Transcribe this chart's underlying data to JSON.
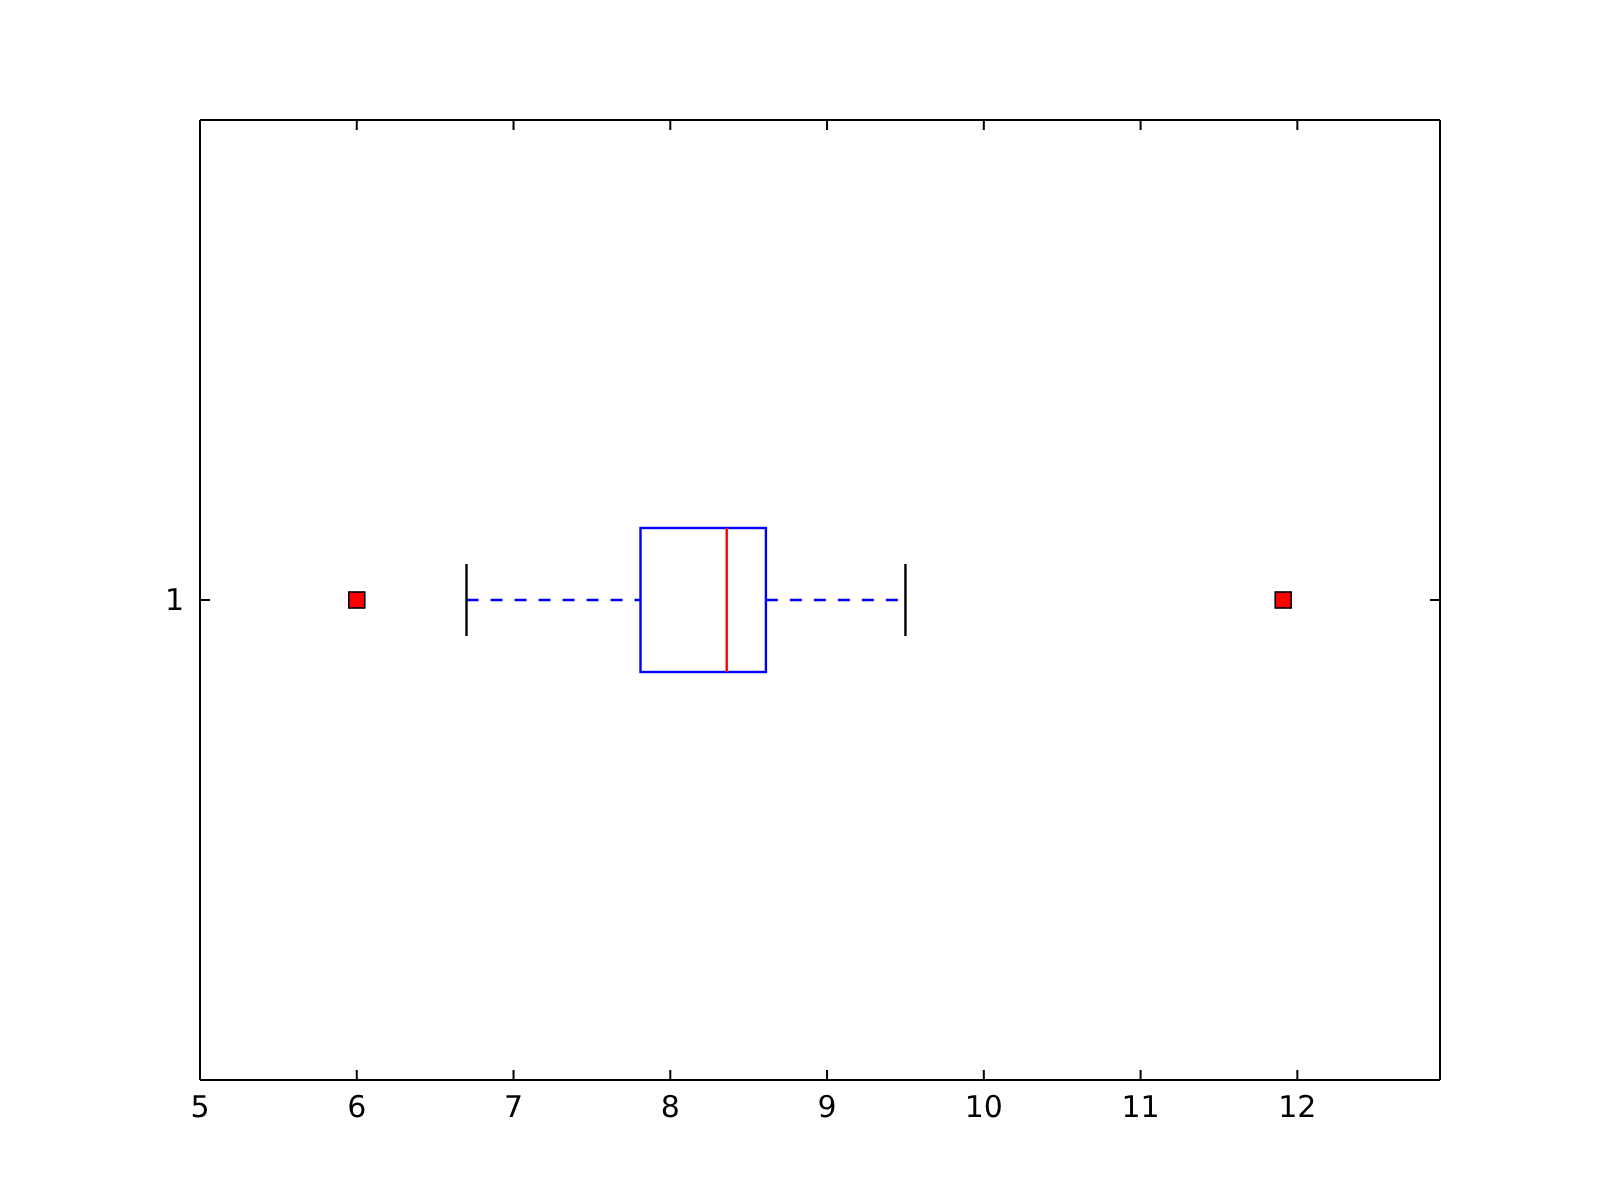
{
  "chart_data": {
    "type": "box",
    "orientation": "horizontal",
    "categories": [
      "1"
    ],
    "color": "#0000ff",
    "marker": "square",
    "line_style": "dashed",
    "boxes": [
      {
        "low": 6.7,
        "q1": 7.81,
        "median": 8.36,
        "q3": 8.61,
        "high": 9.5,
        "outliers": [
          6.0,
          11.91
        ]
      }
    ],
    "xlim": [
      5,
      12.91
    ],
    "xticks": [
      5,
      6,
      7,
      8,
      9,
      10,
      11,
      12
    ],
    "grid": false
  }
}
